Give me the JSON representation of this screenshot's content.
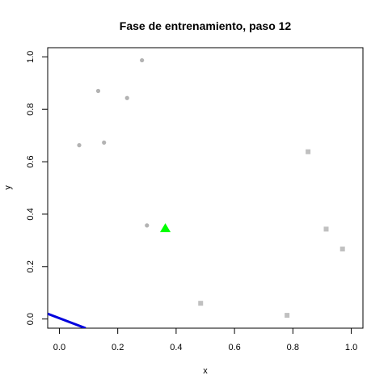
{
  "chart_data": {
    "type": "scatter",
    "title": "Fase de entrenamiento, paso 12",
    "xlabel": "x",
    "ylabel": "y",
    "xlim": [
      -0.04,
      1.04
    ],
    "ylim": [
      -0.035,
      1.035
    ],
    "x_ticks": [
      0.0,
      0.2,
      0.4,
      0.6,
      0.8,
      1.0
    ],
    "x_tick_labels": [
      "0.0",
      "0.2",
      "0.4",
      "0.6",
      "0.8",
      "1.0"
    ],
    "y_ticks": [
      0.0,
      0.2,
      0.4,
      0.6,
      0.8,
      1.0
    ],
    "y_tick_labels": [
      "0.0",
      "0.2",
      "0.4",
      "0.6",
      "0.8",
      "1.0"
    ],
    "grid": false,
    "series": [
      {
        "marker": "circle",
        "color": "#b3b3b3",
        "points": [
          {
            "x": 0.068,
            "y": 0.663
          },
          {
            "x": 0.133,
            "y": 0.87
          },
          {
            "x": 0.153,
            "y": 0.673
          },
          {
            "x": 0.232,
            "y": 0.843
          },
          {
            "x": 0.283,
            "y": 0.987
          },
          {
            "x": 0.3,
            "y": 0.357
          }
        ]
      },
      {
        "marker": "square",
        "color": "#c0c0c0",
        "points": [
          {
            "x": 0.484,
            "y": 0.06
          },
          {
            "x": 0.78,
            "y": 0.014
          },
          {
            "x": 0.852,
            "y": 0.638
          },
          {
            "x": 0.914,
            "y": 0.343
          },
          {
            "x": 0.97,
            "y": 0.267
          }
        ]
      },
      {
        "marker": "triangle",
        "color": "#00ff00",
        "points": [
          {
            "x": 0.363,
            "y": 0.345
          }
        ]
      }
    ],
    "line": {
      "color": "#0000dd",
      "points": [
        {
          "x": -0.04,
          "y": 0.02
        },
        {
          "x": 0.09,
          "y": -0.035
        }
      ]
    }
  }
}
